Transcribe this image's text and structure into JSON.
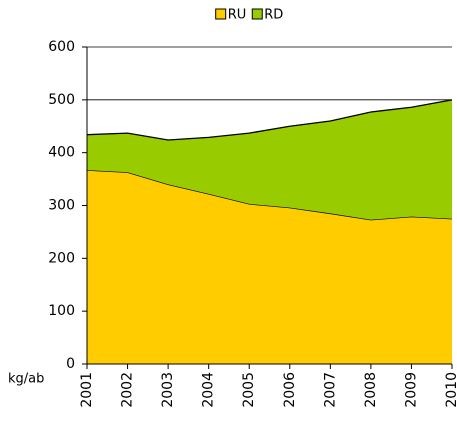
{
  "chart_data": {
    "type": "stacked_area",
    "categories": [
      "2001",
      "2002",
      "2003",
      "2004",
      "2005",
      "2006",
      "2007",
      "2008",
      "2009",
      "2010"
    ],
    "series": [
      {
        "name": "RU",
        "color": "#ffcc00",
        "values": [
          367,
          363,
          340,
          322,
          303,
          296,
          285,
          273,
          279,
          275
        ]
      },
      {
        "name": "RD",
        "color": "#99cc00",
        "values": [
          67,
          74,
          84,
          107,
          134,
          154,
          175,
          204,
          207,
          225
        ]
      }
    ],
    "y_label": "kg/ab",
    "ylim": [
      0,
      600
    ],
    "yticks": [
      0,
      100,
      200,
      300,
      400,
      500,
      600
    ],
    "grid": true,
    "legend": "top"
  }
}
